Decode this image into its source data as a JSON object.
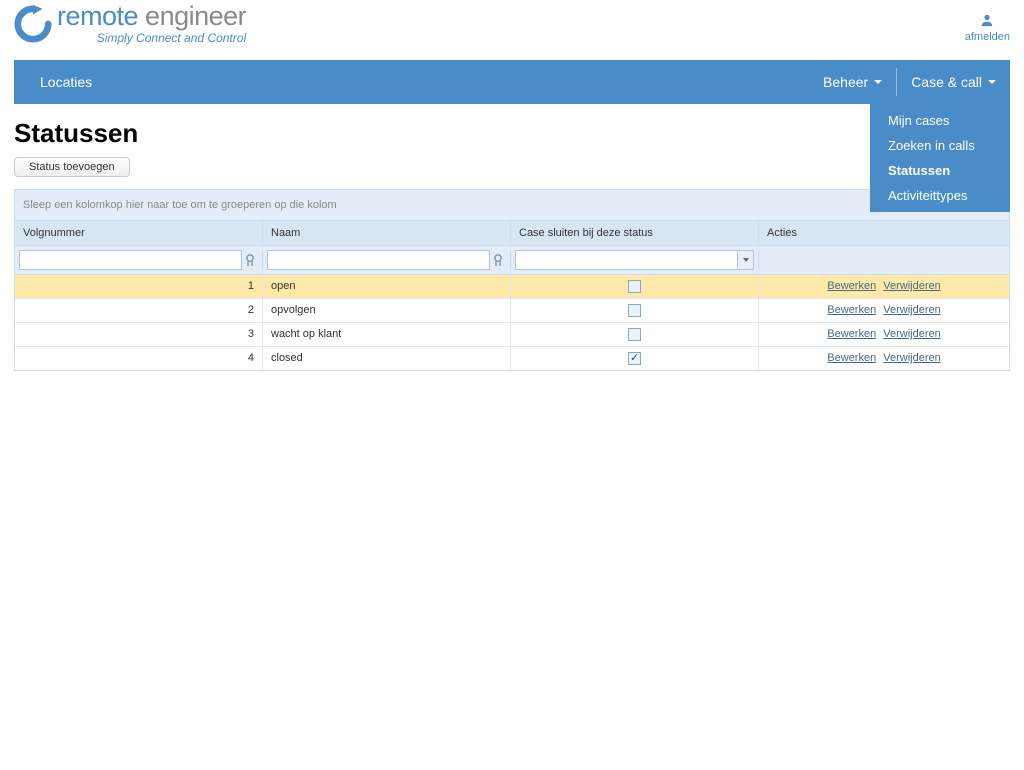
{
  "brand": {
    "name_part1": "remote",
    "name_part2": " engineer",
    "tagline": "Simply Connect and Control",
    "icon_color": "#4a8cc7"
  },
  "user": {
    "logout_label": "afmelden"
  },
  "nav": {
    "locations": "Locaties",
    "beheer": "Beheer",
    "case_call": "Case & call"
  },
  "dropdown": {
    "items": [
      {
        "label": "Mijn cases",
        "active": false
      },
      {
        "label": "Zoeken in calls",
        "active": false
      },
      {
        "label": "Statussen",
        "active": true
      },
      {
        "label": "Activiteittypes",
        "active": false
      }
    ]
  },
  "page": {
    "title": "Statussen",
    "add_button": "Status toevoegen"
  },
  "grid": {
    "group_hint": "Sleep een kolomkop hier naar toe om te groeperen op die kolom",
    "columns": {
      "seq": "Volgnummer",
      "name": "Naam",
      "close": "Case sluiten bij deze status",
      "actions": "Acties"
    },
    "action_labels": {
      "edit": "Bewerken",
      "delete": "Verwijderen"
    },
    "rows": [
      {
        "seq": "1",
        "name": "open",
        "close": false,
        "highlight": true
      },
      {
        "seq": "2",
        "name": "opvolgen",
        "close": false,
        "highlight": false
      },
      {
        "seq": "3",
        "name": "wacht op klant",
        "close": false,
        "highlight": false
      },
      {
        "seq": "4",
        "name": "closed",
        "close": true,
        "highlight": false
      }
    ]
  },
  "colors": {
    "navbar": "#4a8cc7",
    "header_bg": "#d8e6f3",
    "panel_bg": "#e4edf7",
    "highlight": "#ffe9a8",
    "link": "#4a6a8a"
  }
}
